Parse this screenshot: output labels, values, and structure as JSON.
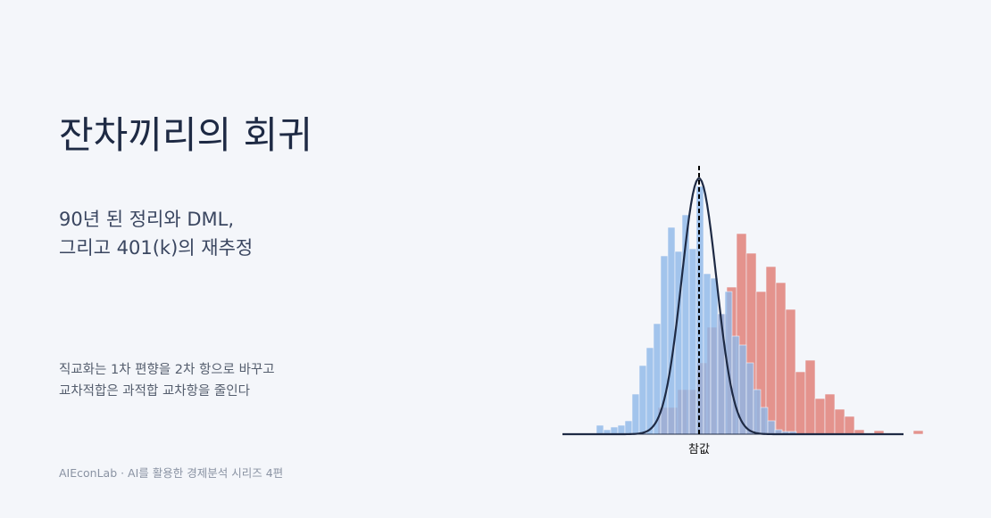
{
  "title": "잔차끼리의 회귀",
  "subtitle": [
    "90년 된 정리와 DML,",
    "그리고 401(k)의 재추정"
  ],
  "body": [
    "직교화는 1차 편향을 2차 항으로 바꾸고",
    "교차적합은 과적합 교차항을 줄인다"
  ],
  "footer": "AIEconLab · AI를 활용한 경제분석 시리즈 4편",
  "chart_data": {
    "type": "histogram",
    "xlim": [
      -15.3,
      25.7
    ],
    "ylim": [
      0,
      300
    ],
    "series": [
      {
        "color": "#e07b72",
        "bins": [
          -4.6,
          -3.5,
          -2.4,
          -1.3,
          -0.2,
          0.9,
          2,
          3.1,
          4.2,
          5.3,
          6.4,
          7.5,
          8.6,
          9.7,
          10.8,
          11.9,
          13,
          14.1,
          15.2,
          16.3,
          17.4,
          18.5,
          19.6,
          20.7,
          21.8,
          22.9,
          24,
          25.1
        ],
        "values": [
          30,
          30,
          50,
          50,
          80,
          120,
          135,
          165,
          225,
          203,
          160,
          188,
          170,
          140,
          70,
          83,
          40,
          45,
          28,
          20,
          5,
          0,
          4,
          0,
          0,
          0,
          4
        ]
      },
      {
        "color": "#8db8e8",
        "bins": [
          -11.5,
          -10.7,
          -9.9,
          -9.1,
          -8.3,
          -7.5,
          -6.7,
          -5.9,
          -5.1,
          -4.3,
          -3.5,
          -2.7,
          -1.9,
          -1.1,
          -0.3,
          0.5,
          1.3,
          2.1,
          2.9,
          3.7,
          4.5,
          5.3,
          6.1,
          6.9,
          7.7,
          8.5,
          9.3,
          10.1,
          10.9
        ],
        "values": [
          10,
          5,
          8,
          10,
          15,
          45,
          77,
          97,
          124,
          200,
          232,
          205,
          246,
          208,
          278,
          180,
          175,
          135,
          160,
          110,
          100,
          80,
          50,
          30,
          15,
          5,
          3,
          3
        ]
      }
    ],
    "curve": {
      "mean": 0,
      "sd": 1.95,
      "peak": 287,
      "color": "#1e2a44"
    },
    "true_line": {
      "value": 0,
      "label": "참값"
    }
  }
}
